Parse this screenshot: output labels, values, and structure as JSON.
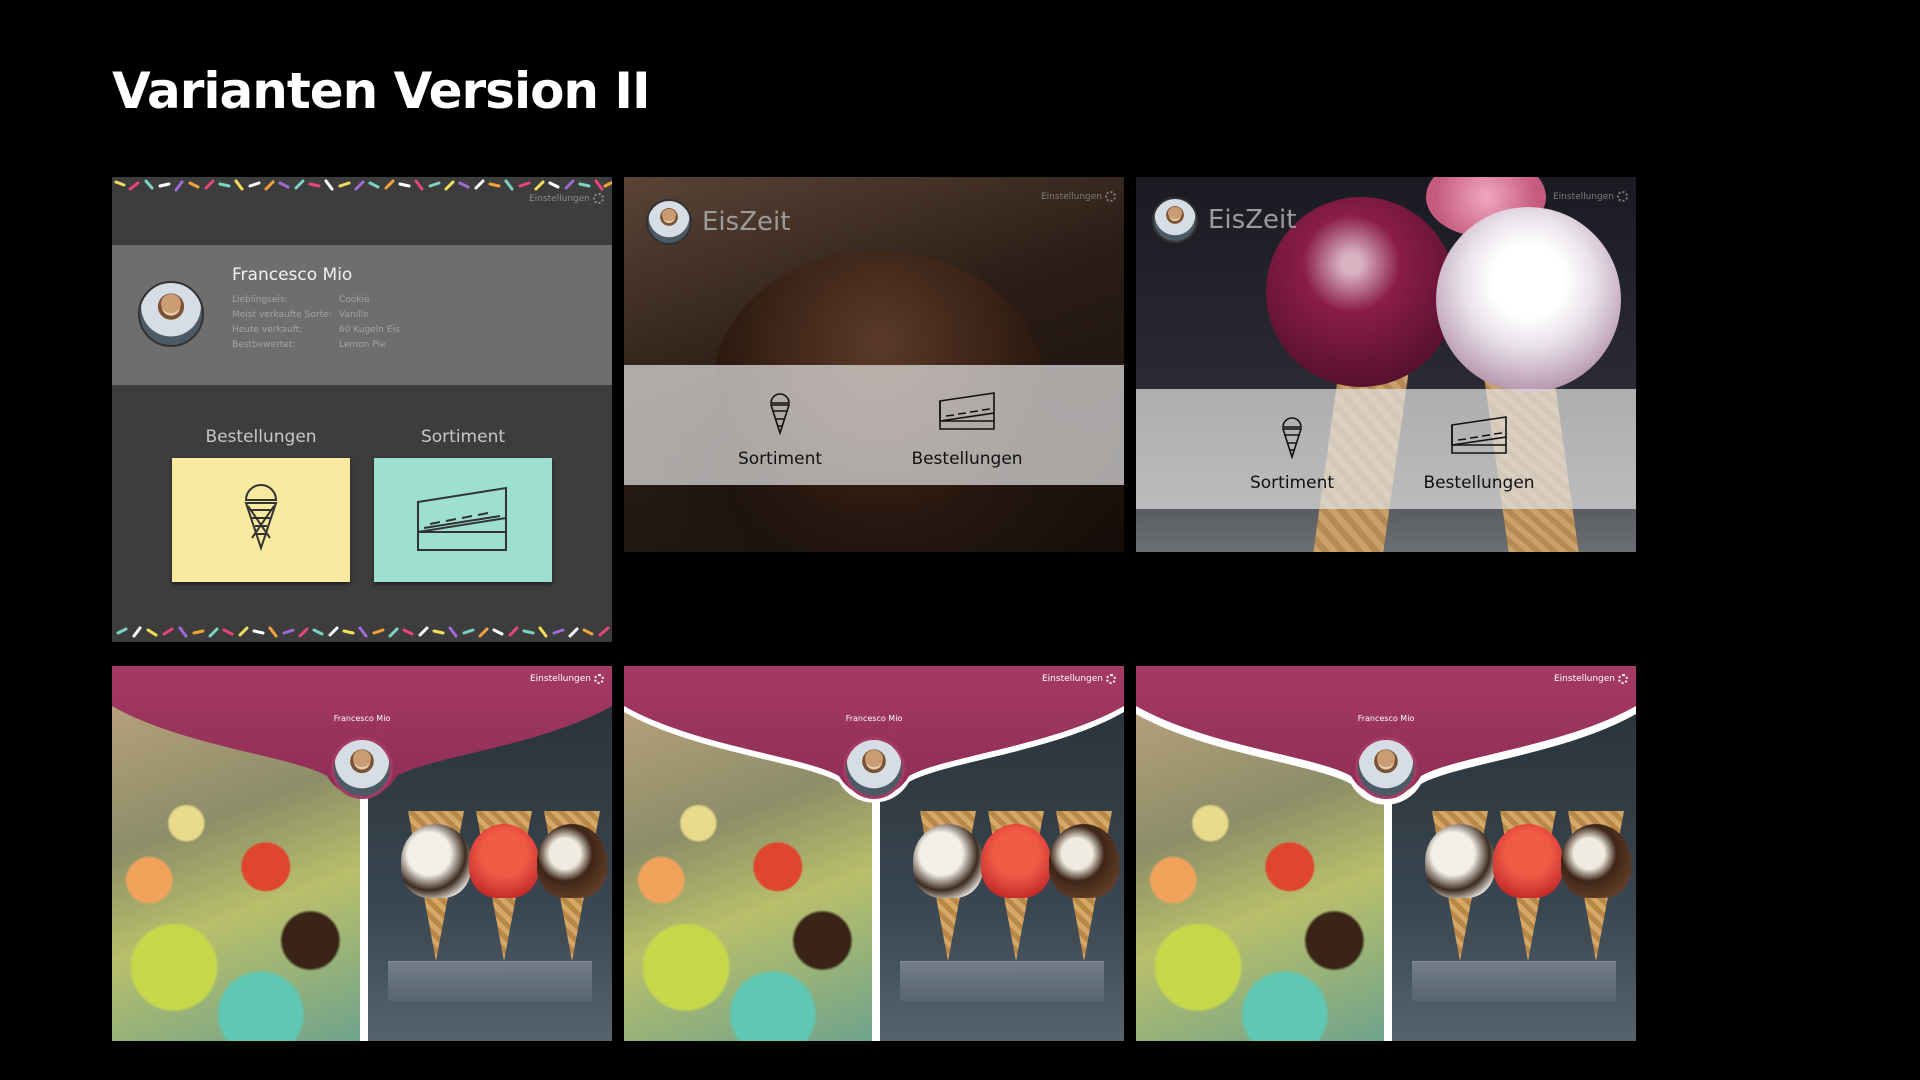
{
  "slide": {
    "title": "Varianten Version II"
  },
  "mock1": {
    "settings_label": "Einstellungen",
    "name": "Francesco Mio",
    "stats": [
      {
        "key": "Lieblingseis:",
        "value": "Cookie"
      },
      {
        "key": "Meist verkaufte Sorte:",
        "value": "Vanille"
      },
      {
        "key": "Heute verkauft:",
        "value": "60 Kugeln Eis"
      },
      {
        "key": "Bestbewertet:",
        "value": "Lemon Pie"
      }
    ],
    "label_orders": "Bestellungen",
    "label_range": "Sortiment",
    "tile_orders_color": "#f8ea9f",
    "tile_range_color": "#9ee0cf"
  },
  "mock2": {
    "settings_label": "Einstellungen",
    "brand": "EisZeit",
    "band_left": "Sortiment",
    "band_right": "Bestellungen"
  },
  "mock3": {
    "settings_label": "Einstellungen",
    "brand": "EisZeit",
    "band_left": "Sortiment",
    "band_right": "Bestellungen"
  },
  "mock4": {
    "settings_label": "Einstellungen",
    "name": "Francesco Mio",
    "accent": "#a53a64"
  },
  "mock5": {
    "settings_label": "Einstellungen",
    "name": "Francesco Mio",
    "accent": "#a53a64"
  },
  "mock6": {
    "settings_label": "Einstellungen",
    "name": "Francesco Mio",
    "accent": "#a53a64"
  }
}
